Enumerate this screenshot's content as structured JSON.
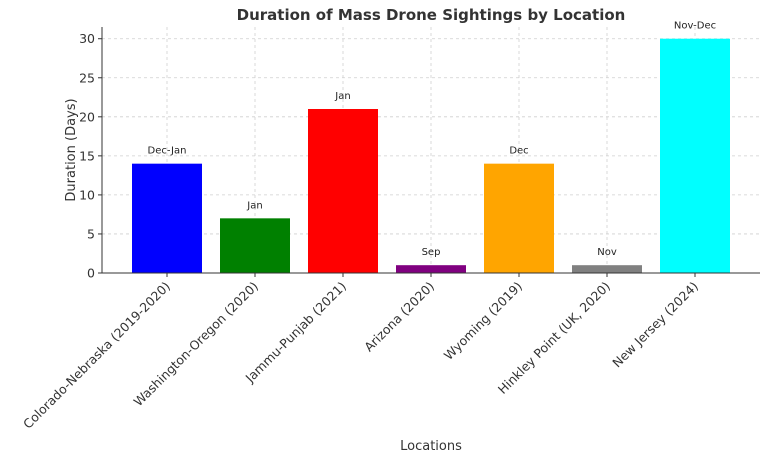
{
  "chart_data": {
    "type": "bar",
    "title": "Duration of Mass Drone Sightings by Location",
    "xlabel": "Locations",
    "ylabel": "Duration (Days)",
    "ylim": [
      0,
      31.5
    ],
    "yticks": [
      0,
      5,
      10,
      15,
      20,
      25,
      30
    ],
    "grid": true,
    "categories": [
      "Colorado-Nebraska (2019-2020)",
      "Washington-Oregon (2020)",
      "Jammu-Punjab (2021)",
      "Arizona (2020)",
      "Wyoming (2019)",
      "Hinkley Point (UK, 2020)",
      "New Jersey (2024)"
    ],
    "values": [
      14,
      7,
      21,
      1,
      14,
      1,
      30
    ],
    "bar_labels": [
      "Dec-Jan",
      "Jan",
      "Jan",
      "Sep",
      "Dec",
      "Nov",
      "Nov-Dec"
    ],
    "colors": [
      "#0000ff",
      "#008000",
      "#ff0000",
      "#800080",
      "#ffa500",
      "#808080",
      "#00ffff"
    ]
  }
}
